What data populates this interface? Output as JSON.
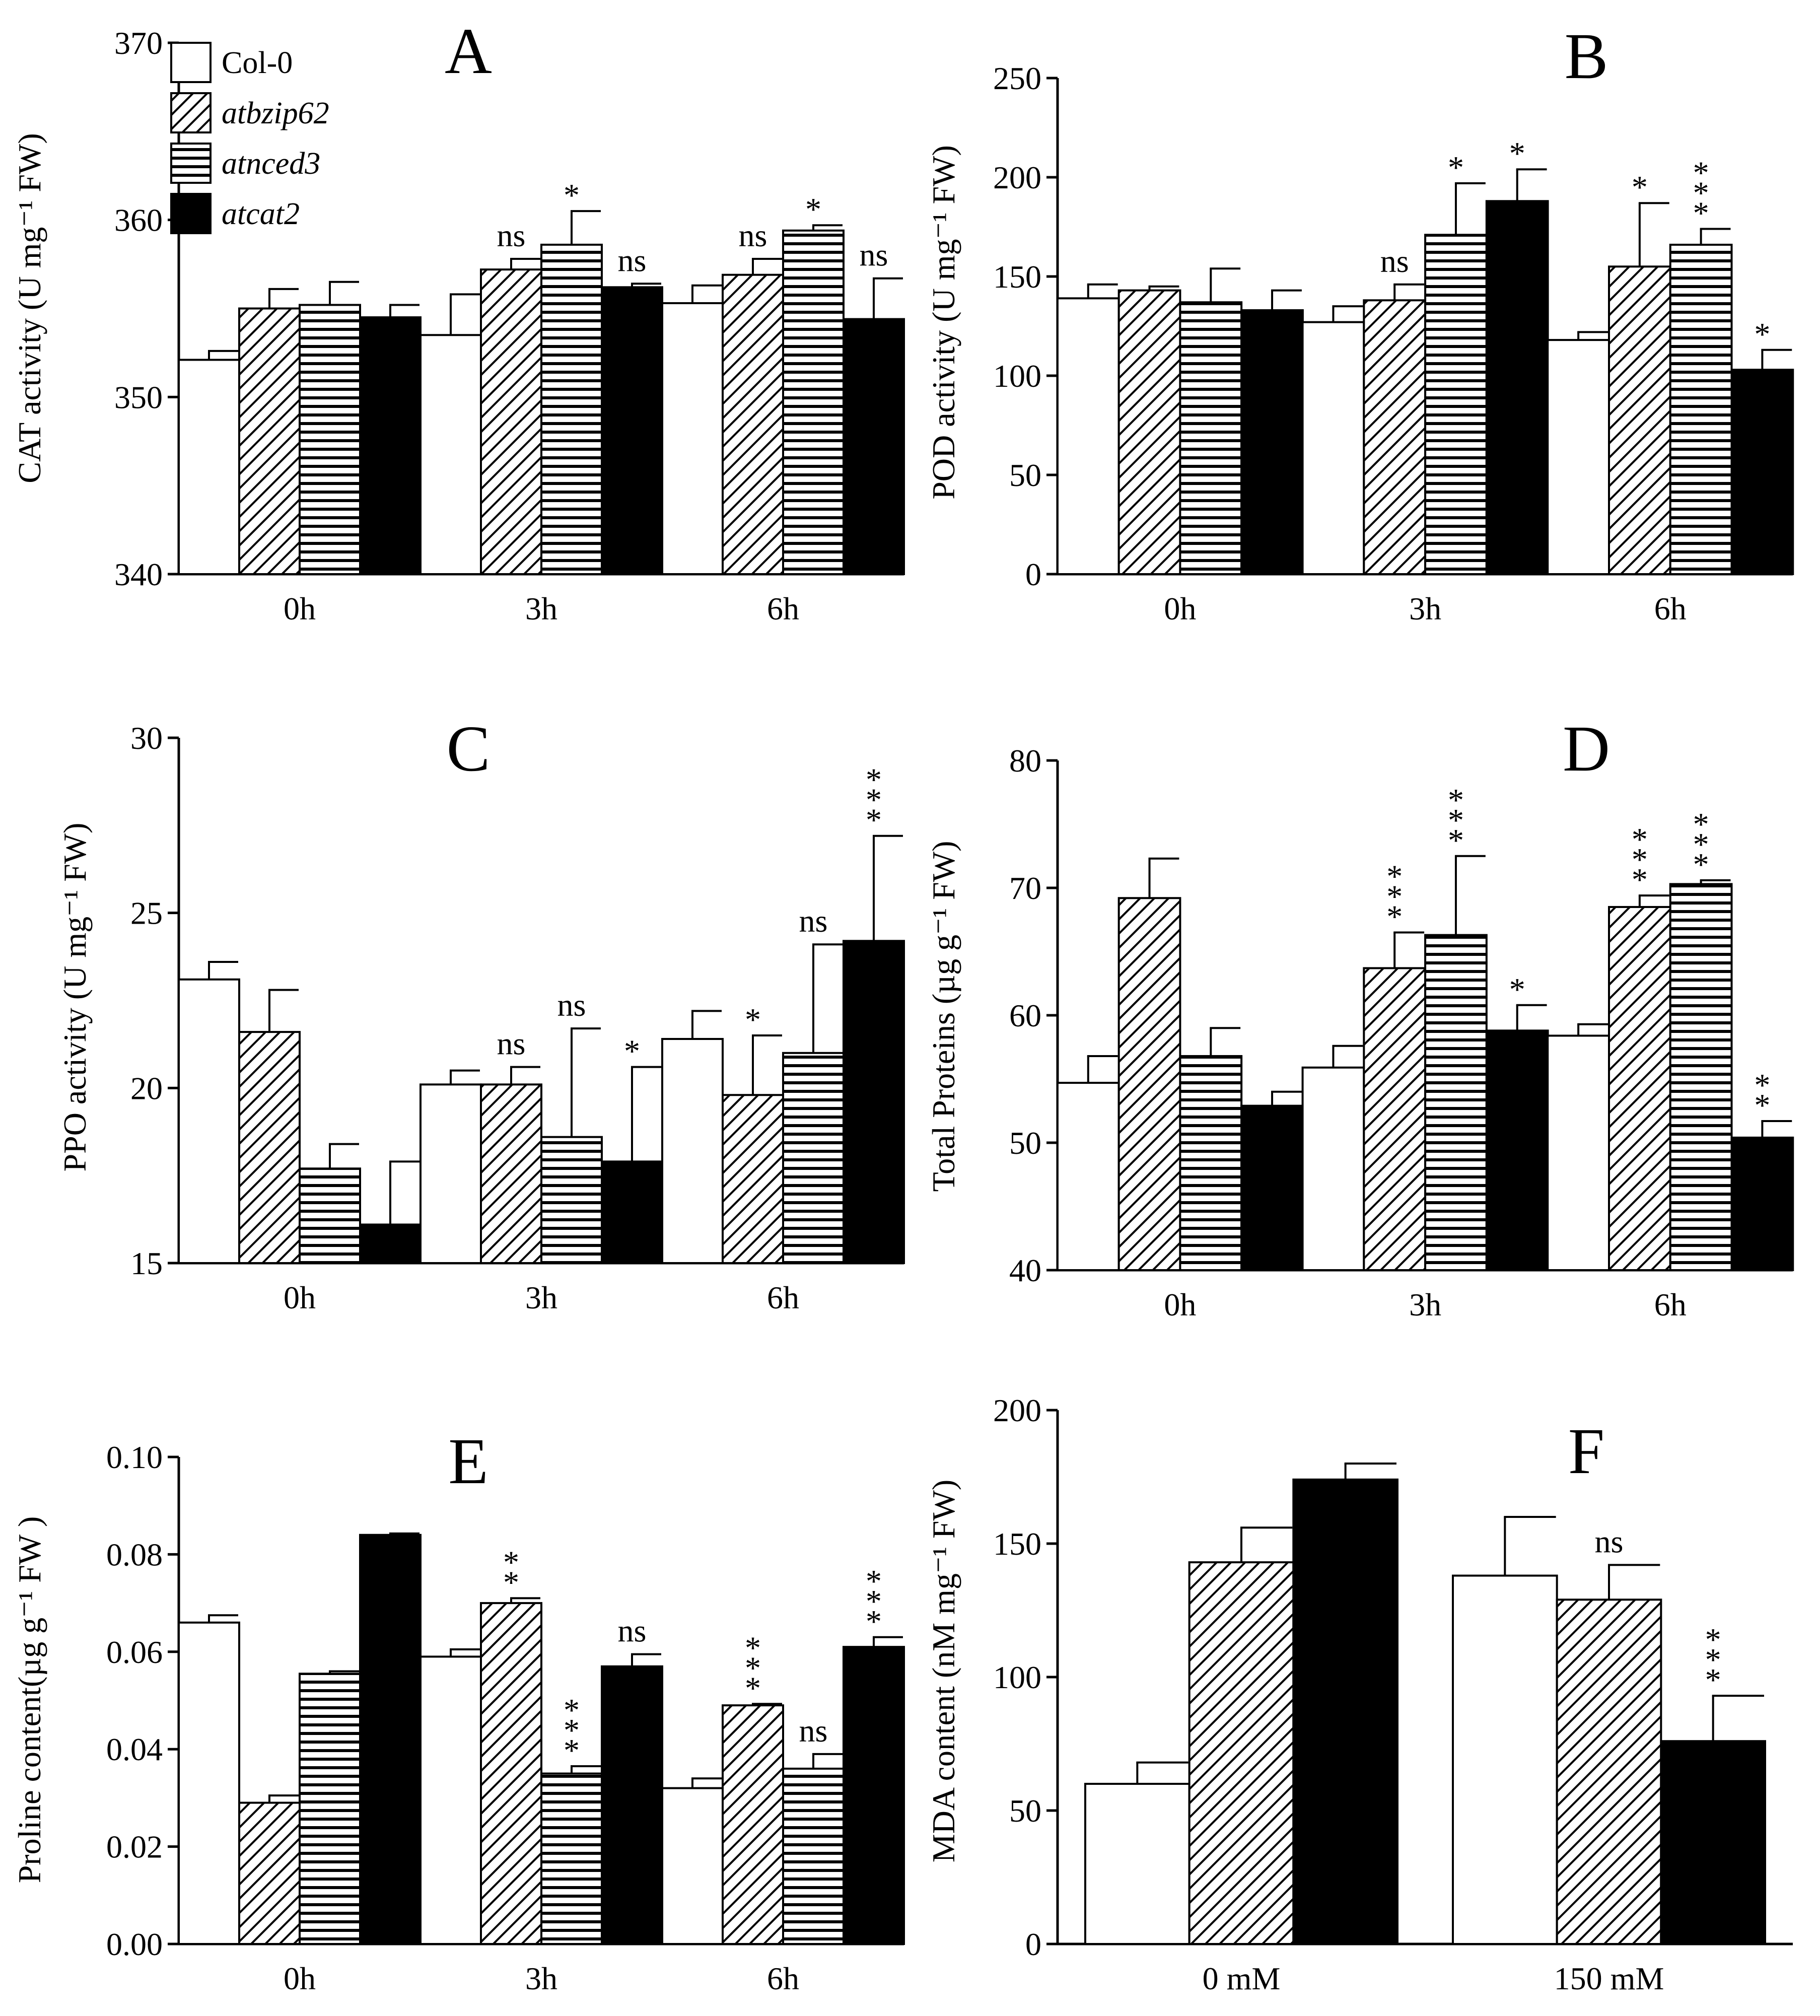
{
  "legend": {
    "items": [
      {
        "label": "Col-0",
        "pattern": "white",
        "italic": false
      },
      {
        "label": "atbzip62",
        "pattern": "diag",
        "italic": true
      },
      {
        "label": "atnced3",
        "pattern": "horiz",
        "italic": true
      },
      {
        "label": "atcat2",
        "pattern": "black",
        "italic": true
      }
    ]
  },
  "chart_data": [
    {
      "panel": "A",
      "type": "bar",
      "ylabel": "CAT activity (U mg⁻¹ FW)",
      "ylim": [
        340,
        370
      ],
      "yticks": [
        "340",
        "350",
        "360",
        "370"
      ],
      "categories": [
        "0h",
        "3h",
        "6h"
      ],
      "series": [
        {
          "name": "Col-0",
          "pattern": "white",
          "values": [
            352.1,
            353.5,
            355.3
          ],
          "errors": [
            0.5,
            2.3,
            1.0
          ],
          "annotations": [
            "",
            "",
            ""
          ]
        },
        {
          "name": "atbzip62",
          "pattern": "diag",
          "values": [
            355.0,
            357.2,
            356.9
          ],
          "errors": [
            1.1,
            0.6,
            0.9
          ],
          "annotations": [
            "",
            "ns",
            "ns"
          ]
        },
        {
          "name": "atnced3",
          "pattern": "horiz",
          "values": [
            355.2,
            358.6,
            359.4
          ],
          "errors": [
            1.3,
            1.9,
            0.3
          ],
          "annotations": [
            "",
            "*",
            "*"
          ]
        },
        {
          "name": "atcat2",
          "pattern": "black",
          "values": [
            354.5,
            356.2,
            354.4
          ],
          "errors": [
            0.7,
            0.2,
            2.3
          ],
          "annotations": [
            "",
            "ns",
            "ns"
          ]
        }
      ]
    },
    {
      "panel": "B",
      "type": "bar",
      "ylabel": "POD activity (U mg⁻¹ FW)",
      "ylim": [
        0,
        250
      ],
      "yticks": [
        "0",
        "50",
        "100",
        "150",
        "200",
        "250"
      ],
      "categories": [
        "0h",
        "3h",
        "6h"
      ],
      "series": [
        {
          "name": "Col-0",
          "pattern": "white",
          "values": [
            139,
            127,
            118
          ],
          "errors": [
            7,
            8,
            4
          ],
          "annotations": [
            "",
            "",
            ""
          ]
        },
        {
          "name": "atbzip62",
          "pattern": "diag",
          "values": [
            143,
            138,
            155
          ],
          "errors": [
            2,
            8,
            32
          ],
          "annotations": [
            "",
            "ns",
            "*"
          ]
        },
        {
          "name": "atnced3",
          "pattern": "horiz",
          "values": [
            137,
            171,
            166
          ],
          "errors": [
            17,
            26,
            8
          ],
          "annotations": [
            "",
            "*",
            "***"
          ]
        },
        {
          "name": "atcat2",
          "pattern": "black",
          "values": [
            133,
            188,
            103
          ],
          "errors": [
            10,
            16,
            10
          ],
          "annotations": [
            "",
            "*",
            "*"
          ]
        }
      ]
    },
    {
      "panel": "C",
      "type": "bar",
      "ylabel": "PPO activity (U mg⁻¹ FW)",
      "ylim": [
        15,
        30
      ],
      "yticks": [
        "15",
        "20",
        "25",
        "30"
      ],
      "categories": [
        "0h",
        "3h",
        "6h"
      ],
      "series": [
        {
          "name": "Col-0",
          "pattern": "white",
          "values": [
            23.1,
            20.1,
            21.4
          ],
          "errors": [
            0.5,
            0.4,
            0.8
          ],
          "annotations": [
            "",
            "",
            ""
          ]
        },
        {
          "name": "atbzip62",
          "pattern": "diag",
          "values": [
            21.6,
            20.1,
            19.8
          ],
          "errors": [
            1.2,
            0.5,
            1.7
          ],
          "annotations": [
            "",
            "ns",
            "*"
          ]
        },
        {
          "name": "atnced3",
          "pattern": "horiz",
          "values": [
            17.7,
            18.6,
            21.0
          ],
          "errors": [
            0.7,
            3.1,
            3.1
          ],
          "annotations": [
            "",
            "ns",
            "ns"
          ]
        },
        {
          "name": "atcat2",
          "pattern": "black",
          "values": [
            16.1,
            17.9,
            24.2
          ],
          "errors": [
            1.8,
            2.7,
            3.0
          ],
          "annotations": [
            "",
            "*",
            "***"
          ]
        }
      ]
    },
    {
      "panel": "D",
      "type": "bar",
      "ylabel": "Total Proteins (µg g⁻¹ FW)",
      "ylim": [
        40,
        80
      ],
      "yticks": [
        "40",
        "50",
        "60",
        "70",
        "80"
      ],
      "categories": [
        "0h",
        "3h",
        "6h"
      ],
      "series": [
        {
          "name": "Col-0",
          "pattern": "white",
          "values": [
            54.7,
            55.9,
            58.4
          ],
          "errors": [
            2.1,
            1.7,
            0.9
          ],
          "annotations": [
            "",
            "",
            ""
          ]
        },
        {
          "name": "atbzip62",
          "pattern": "diag",
          "values": [
            69.2,
            63.7,
            68.5
          ],
          "errors": [
            3.1,
            2.8,
            0.9
          ],
          "annotations": [
            "",
            "***",
            "***"
          ]
        },
        {
          "name": "atnced3",
          "pattern": "horiz",
          "values": [
            56.8,
            66.3,
            70.3
          ],
          "errors": [
            2.2,
            6.2,
            0.3
          ],
          "annotations": [
            "",
            "***",
            "***"
          ]
        },
        {
          "name": "atcat2",
          "pattern": "black",
          "values": [
            52.9,
            58.8,
            50.4
          ],
          "errors": [
            1.1,
            2.0,
            1.3
          ],
          "annotations": [
            "",
            "*",
            "**"
          ]
        }
      ]
    },
    {
      "panel": "E",
      "type": "bar",
      "ylabel": "Proline content(µg g⁻¹ FW )",
      "ylim": [
        0,
        0.1
      ],
      "yticks": [
        "0.00",
        "0.02",
        "0.04",
        "0.06",
        "0.08",
        "0.10"
      ],
      "categories": [
        "0h",
        "3h",
        "6h"
      ],
      "series": [
        {
          "name": "Col-0",
          "pattern": "white",
          "values": [
            0.066,
            0.059,
            0.032
          ],
          "errors": [
            0.0015,
            0.0015,
            0.002
          ],
          "annotations": [
            "",
            "",
            ""
          ]
        },
        {
          "name": "atbzip62",
          "pattern": "diag",
          "values": [
            0.029,
            0.07,
            0.049
          ],
          "errors": [
            0.0015,
            0.001,
            0.0003
          ],
          "annotations": [
            "",
            "**",
            "***"
          ]
        },
        {
          "name": "atnced3",
          "pattern": "horiz",
          "values": [
            0.0555,
            0.035,
            0.036
          ],
          "errors": [
            0.0005,
            0.0015,
            0.003
          ],
          "annotations": [
            "",
            "***",
            "ns"
          ]
        },
        {
          "name": "atcat2",
          "pattern": "black",
          "values": [
            0.084,
            0.057,
            0.061
          ],
          "errors": [
            0.0003,
            0.0025,
            0.002
          ],
          "annotations": [
            "",
            "ns",
            "***"
          ]
        }
      ]
    },
    {
      "panel": "F",
      "type": "bar",
      "ylabel": "MDA content (nM mg⁻¹ FW)",
      "ylim": [
        0,
        200
      ],
      "yticks": [
        "0",
        "50",
        "100",
        "150",
        "200"
      ],
      "categories": [
        "0 mM",
        "150 mM"
      ],
      "series": [
        {
          "name": "Col-0",
          "pattern": "white",
          "values": [
            60,
            138
          ],
          "errors": [
            8,
            22
          ],
          "annotations": [
            "",
            ""
          ]
        },
        {
          "name": "atbzip62",
          "pattern": "diag",
          "values": [
            143,
            129
          ],
          "errors": [
            13,
            13
          ],
          "annotations": [
            "",
            "ns"
          ]
        },
        {
          "name": "atcat2",
          "pattern": "black",
          "values": [
            174,
            76
          ],
          "errors": [
            6,
            17
          ],
          "annotations": [
            "",
            "***"
          ]
        }
      ]
    }
  ]
}
